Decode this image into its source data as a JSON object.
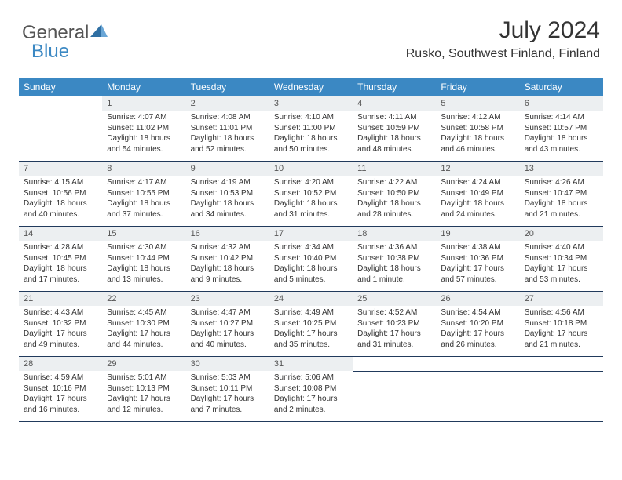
{
  "logo": {
    "text1": "General",
    "text2": "Blue"
  },
  "title": "July 2024",
  "location": "Rusko, Southwest Finland, Finland",
  "colors": {
    "header_bg": "#3b88c3",
    "header_fg": "#ffffff",
    "daynum_bg": "#eceff1",
    "rule": "#213a5c",
    "text": "#333333"
  },
  "day_headers": [
    "Sunday",
    "Monday",
    "Tuesday",
    "Wednesday",
    "Thursday",
    "Friday",
    "Saturday"
  ],
  "weeks": [
    {
      "nums": [
        "",
        "1",
        "2",
        "3",
        "4",
        "5",
        "6"
      ],
      "cells": [
        null,
        {
          "sunrise": "Sunrise: 4:07 AM",
          "sunset": "Sunset: 11:02 PM",
          "dl1": "Daylight: 18 hours",
          "dl2": "and 54 minutes."
        },
        {
          "sunrise": "Sunrise: 4:08 AM",
          "sunset": "Sunset: 11:01 PM",
          "dl1": "Daylight: 18 hours",
          "dl2": "and 52 minutes."
        },
        {
          "sunrise": "Sunrise: 4:10 AM",
          "sunset": "Sunset: 11:00 PM",
          "dl1": "Daylight: 18 hours",
          "dl2": "and 50 minutes."
        },
        {
          "sunrise": "Sunrise: 4:11 AM",
          "sunset": "Sunset: 10:59 PM",
          "dl1": "Daylight: 18 hours",
          "dl2": "and 48 minutes."
        },
        {
          "sunrise": "Sunrise: 4:12 AM",
          "sunset": "Sunset: 10:58 PM",
          "dl1": "Daylight: 18 hours",
          "dl2": "and 46 minutes."
        },
        {
          "sunrise": "Sunrise: 4:14 AM",
          "sunset": "Sunset: 10:57 PM",
          "dl1": "Daylight: 18 hours",
          "dl2": "and 43 minutes."
        }
      ]
    },
    {
      "nums": [
        "7",
        "8",
        "9",
        "10",
        "11",
        "12",
        "13"
      ],
      "cells": [
        {
          "sunrise": "Sunrise: 4:15 AM",
          "sunset": "Sunset: 10:56 PM",
          "dl1": "Daylight: 18 hours",
          "dl2": "and 40 minutes."
        },
        {
          "sunrise": "Sunrise: 4:17 AM",
          "sunset": "Sunset: 10:55 PM",
          "dl1": "Daylight: 18 hours",
          "dl2": "and 37 minutes."
        },
        {
          "sunrise": "Sunrise: 4:19 AM",
          "sunset": "Sunset: 10:53 PM",
          "dl1": "Daylight: 18 hours",
          "dl2": "and 34 minutes."
        },
        {
          "sunrise": "Sunrise: 4:20 AM",
          "sunset": "Sunset: 10:52 PM",
          "dl1": "Daylight: 18 hours",
          "dl2": "and 31 minutes."
        },
        {
          "sunrise": "Sunrise: 4:22 AM",
          "sunset": "Sunset: 10:50 PM",
          "dl1": "Daylight: 18 hours",
          "dl2": "and 28 minutes."
        },
        {
          "sunrise": "Sunrise: 4:24 AM",
          "sunset": "Sunset: 10:49 PM",
          "dl1": "Daylight: 18 hours",
          "dl2": "and 24 minutes."
        },
        {
          "sunrise": "Sunrise: 4:26 AM",
          "sunset": "Sunset: 10:47 PM",
          "dl1": "Daylight: 18 hours",
          "dl2": "and 21 minutes."
        }
      ]
    },
    {
      "nums": [
        "14",
        "15",
        "16",
        "17",
        "18",
        "19",
        "20"
      ],
      "cells": [
        {
          "sunrise": "Sunrise: 4:28 AM",
          "sunset": "Sunset: 10:45 PM",
          "dl1": "Daylight: 18 hours",
          "dl2": "and 17 minutes."
        },
        {
          "sunrise": "Sunrise: 4:30 AM",
          "sunset": "Sunset: 10:44 PM",
          "dl1": "Daylight: 18 hours",
          "dl2": "and 13 minutes."
        },
        {
          "sunrise": "Sunrise: 4:32 AM",
          "sunset": "Sunset: 10:42 PM",
          "dl1": "Daylight: 18 hours",
          "dl2": "and 9 minutes."
        },
        {
          "sunrise": "Sunrise: 4:34 AM",
          "sunset": "Sunset: 10:40 PM",
          "dl1": "Daylight: 18 hours",
          "dl2": "and 5 minutes."
        },
        {
          "sunrise": "Sunrise: 4:36 AM",
          "sunset": "Sunset: 10:38 PM",
          "dl1": "Daylight: 18 hours",
          "dl2": "and 1 minute."
        },
        {
          "sunrise": "Sunrise: 4:38 AM",
          "sunset": "Sunset: 10:36 PM",
          "dl1": "Daylight: 17 hours",
          "dl2": "and 57 minutes."
        },
        {
          "sunrise": "Sunrise: 4:40 AM",
          "sunset": "Sunset: 10:34 PM",
          "dl1": "Daylight: 17 hours",
          "dl2": "and 53 minutes."
        }
      ]
    },
    {
      "nums": [
        "21",
        "22",
        "23",
        "24",
        "25",
        "26",
        "27"
      ],
      "cells": [
        {
          "sunrise": "Sunrise: 4:43 AM",
          "sunset": "Sunset: 10:32 PM",
          "dl1": "Daylight: 17 hours",
          "dl2": "and 49 minutes."
        },
        {
          "sunrise": "Sunrise: 4:45 AM",
          "sunset": "Sunset: 10:30 PM",
          "dl1": "Daylight: 17 hours",
          "dl2": "and 44 minutes."
        },
        {
          "sunrise": "Sunrise: 4:47 AM",
          "sunset": "Sunset: 10:27 PM",
          "dl1": "Daylight: 17 hours",
          "dl2": "and 40 minutes."
        },
        {
          "sunrise": "Sunrise: 4:49 AM",
          "sunset": "Sunset: 10:25 PM",
          "dl1": "Daylight: 17 hours",
          "dl2": "and 35 minutes."
        },
        {
          "sunrise": "Sunrise: 4:52 AM",
          "sunset": "Sunset: 10:23 PM",
          "dl1": "Daylight: 17 hours",
          "dl2": "and 31 minutes."
        },
        {
          "sunrise": "Sunrise: 4:54 AM",
          "sunset": "Sunset: 10:20 PM",
          "dl1": "Daylight: 17 hours",
          "dl2": "and 26 minutes."
        },
        {
          "sunrise": "Sunrise: 4:56 AM",
          "sunset": "Sunset: 10:18 PM",
          "dl1": "Daylight: 17 hours",
          "dl2": "and 21 minutes."
        }
      ]
    },
    {
      "nums": [
        "28",
        "29",
        "30",
        "31",
        "",
        "",
        ""
      ],
      "cells": [
        {
          "sunrise": "Sunrise: 4:59 AM",
          "sunset": "Sunset: 10:16 PM",
          "dl1": "Daylight: 17 hours",
          "dl2": "and 16 minutes."
        },
        {
          "sunrise": "Sunrise: 5:01 AM",
          "sunset": "Sunset: 10:13 PM",
          "dl1": "Daylight: 17 hours",
          "dl2": "and 12 minutes."
        },
        {
          "sunrise": "Sunrise: 5:03 AM",
          "sunset": "Sunset: 10:11 PM",
          "dl1": "Daylight: 17 hours",
          "dl2": "and 7 minutes."
        },
        {
          "sunrise": "Sunrise: 5:06 AM",
          "sunset": "Sunset: 10:08 PM",
          "dl1": "Daylight: 17 hours",
          "dl2": "and 2 minutes."
        },
        null,
        null,
        null
      ]
    }
  ]
}
